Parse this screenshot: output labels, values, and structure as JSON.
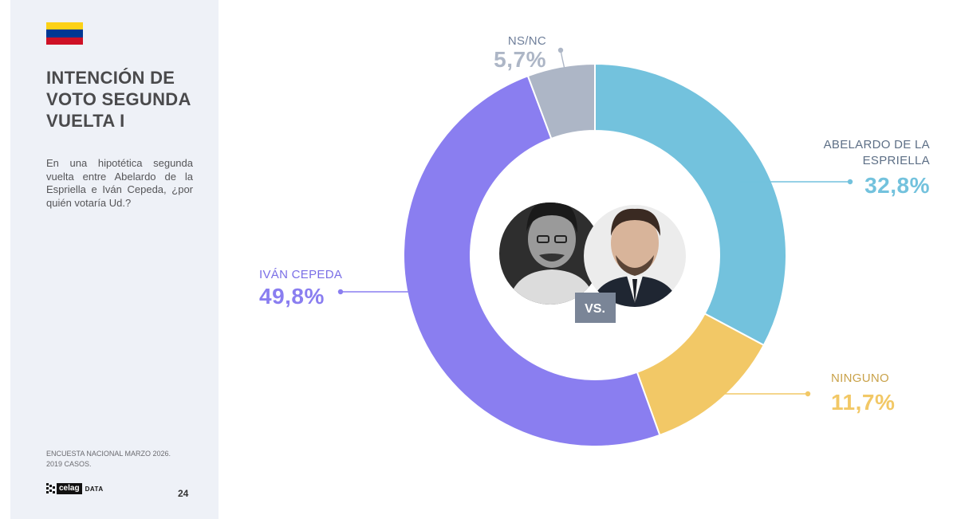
{
  "flag": {
    "country": "Colombia",
    "colors": [
      "#fcd116",
      "#003893",
      "#ce1126"
    ]
  },
  "header": {
    "title_lines": [
      "INTENCIÓN DE",
      "VOTO SEGUNDA",
      "VUELTA I"
    ],
    "question": "En una hipotética segunda vuelta entre Abelardo de la Espriella e Iván Cepeda, ¿por quién votaría Ud.?"
  },
  "footer": {
    "source_lines": [
      "ENCUESTA NACIONAL MARZO 2026.",
      "2019 CASOS."
    ],
    "logo_text": "celag",
    "logo_suffix": "DATA",
    "page_number": "24"
  },
  "center": {
    "vs_label": "VS.",
    "portraits": [
      "cepeda-portrait",
      "espriella-portrait"
    ]
  },
  "chart_data": {
    "type": "pie",
    "variant": "donut",
    "title": "",
    "series": [
      {
        "name": "ABELARDO DE LA ESPRIELLA",
        "label_lines": [
          "ABELARDO DE LA",
          "ESPRIELLA"
        ],
        "value": 32.8,
        "display": "32,8%",
        "color": "#73c2dd"
      },
      {
        "name": "NINGUNO",
        "label_lines": [
          "NINGUNO"
        ],
        "value": 11.7,
        "display": "11,7%",
        "color": "#f2c866"
      },
      {
        "name": "IVÁN CEPEDA",
        "label_lines": [
          "IVÁN CEPEDA"
        ],
        "value": 49.8,
        "display": "49,8%",
        "color": "#8a7ef0"
      },
      {
        "name": "NS/NC",
        "label_lines": [
          "NS/NC"
        ],
        "value": 5.7,
        "display": "5,7%",
        "color": "#adb6c6"
      }
    ]
  }
}
